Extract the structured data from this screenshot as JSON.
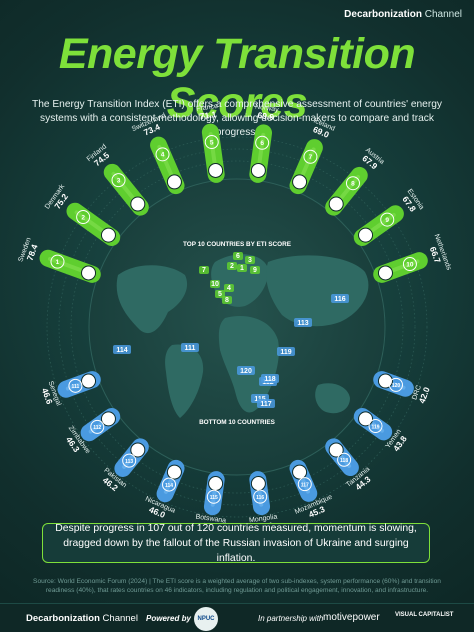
{
  "brand": {
    "bold": "Decarbonization",
    "light": "Channel"
  },
  "title": "Energy Transition Scores",
  "subtitle": "The Energy Transition Index (ETI) offers a comprehensive assessment of countries' energy systems with a consistent methodology, allowing decision-makers to compare and track progress.",
  "chart_data": {
    "type": "bar",
    "top_label": "TOP 10 COUNTRIES BY ETI SCORE",
    "bottom_label": "BOTTOM 10 COUNTRIES",
    "scale_ticks": [
      "20",
      "40",
      "60"
    ],
    "top": [
      {
        "rank": "1",
        "country": "Sweden",
        "value": 78.4,
        "label": "78.4"
      },
      {
        "rank": "2",
        "country": "Denmark",
        "value": 75.2,
        "label": "75.2"
      },
      {
        "rank": "3",
        "country": "Finland",
        "value": 74.5,
        "label": "74.5"
      },
      {
        "rank": "4",
        "country": "Switzerland",
        "value": 73.4,
        "label": "73.4"
      },
      {
        "rank": "5",
        "country": "France",
        "value": 71.1,
        "label": "71.1"
      },
      {
        "rank": "6",
        "country": "Norway",
        "value": 69.9,
        "label": "69.9"
      },
      {
        "rank": "7",
        "country": "Iceland",
        "value": 69.0,
        "label": "69.0"
      },
      {
        "rank": "8",
        "country": "Austria",
        "value": 67.9,
        "label": "67.9"
      },
      {
        "rank": "9",
        "country": "Estonia",
        "value": 67.8,
        "label": "67.8"
      },
      {
        "rank": "10",
        "country": "Netherlands",
        "value": 66.7,
        "label": "66.7"
      }
    ],
    "bottom": [
      {
        "rank": "111",
        "country": "Senegal",
        "value": 46.6,
        "label": "46.6"
      },
      {
        "rank": "112",
        "country": "Zimbabwe",
        "value": 46.3,
        "label": "46.3"
      },
      {
        "rank": "113",
        "country": "Pakistan",
        "value": 46.2,
        "label": "46.2"
      },
      {
        "rank": "114",
        "country": "Nicaragua",
        "value": 46.0,
        "label": "46.0"
      },
      {
        "rank": "115",
        "country": "Botswana",
        "value": 45.6,
        "label": "45.6"
      },
      {
        "rank": "116",
        "country": "Mongolia",
        "value": 45.4,
        "label": "45.4"
      },
      {
        "rank": "117",
        "country": "Mozambique",
        "value": 45.3,
        "label": "45.3"
      },
      {
        "rank": "118",
        "country": "Tanzania",
        "value": 44.3,
        "label": "44.3"
      },
      {
        "rank": "119",
        "country": "Yemen",
        "value": 43.8,
        "label": "43.8"
      },
      {
        "rank": "120",
        "country": "DRC",
        "value": 42.0,
        "label": "42.0"
      }
    ],
    "map_labels": {
      "top": [
        "1",
        "2",
        "3",
        "4",
        "5",
        "6",
        "7",
        "8",
        "9",
        "10"
      ],
      "bottom": [
        "111",
        "112",
        "113",
        "114",
        "115",
        "116",
        "117",
        "118",
        "119",
        "120"
      ]
    },
    "colors": {
      "top_bar": "#5fce2f",
      "top_bar_light": "#9ff06a",
      "bottom_bar": "#4a9ae0",
      "bottom_bar_light": "#8fd0ff",
      "accent": "#7ee03a",
      "ocean": "#1c4441",
      "land": "#2f6a63"
    }
  },
  "message": "Despite progress in 107 out of 120 countries measured, momentum is slowing, dragged down by the fallout of the Russian invasion of Ukraine and surging inflation.",
  "source": "Source: World Economic Forum (2024) | The ETI score is a weighted average of two sub-indexes, system performance (60%) and transition readiness (40%), that rates countries on 46 indicators, including regulation and political engagement, innovation, and infrastructure.",
  "footer": {
    "dc_bold": "Decarbonization",
    "dc_light": "Channel",
    "powered_by": "Powered by",
    "npuc": "NPUC",
    "partnership": "In partnership with",
    "motive": "motivepower",
    "vc": "VISUAL CAPITALIST"
  }
}
